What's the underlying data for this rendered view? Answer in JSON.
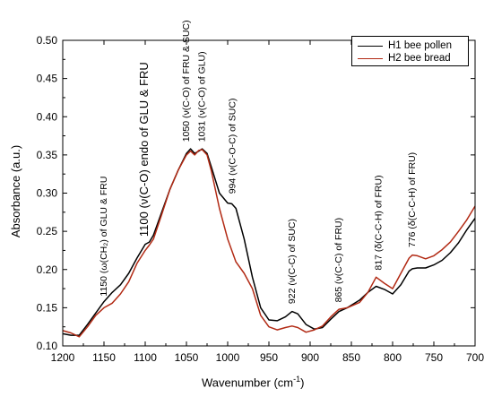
{
  "chart_data": {
    "type": "line",
    "xlabel": "Wavenumber (cm",
    "xlabel_sup": "-1",
    "xlabel_close": ")",
    "ylabel": "Absorbance (a.u.)",
    "xlim": [
      1200,
      700
    ],
    "ylim": [
      0.1,
      0.5
    ],
    "x_ticks": [
      1200,
      1150,
      1100,
      1050,
      1000,
      950,
      900,
      850,
      800,
      750,
      700
    ],
    "y_ticks": [
      "0.10",
      "0.15",
      "0.20",
      "0.25",
      "0.30",
      "0.35",
      "0.40",
      "0.45",
      "0.50"
    ],
    "legend_position": "top-right",
    "series": [
      {
        "name": "H1 bee pollen",
        "color": "#000000",
        "points": [
          [
            1200,
            0.116
          ],
          [
            1190,
            0.114
          ],
          [
            1180,
            0.114
          ],
          [
            1170,
            0.128
          ],
          [
            1160,
            0.143
          ],
          [
            1150,
            0.158
          ],
          [
            1140,
            0.17
          ],
          [
            1130,
            0.18
          ],
          [
            1120,
            0.195
          ],
          [
            1110,
            0.215
          ],
          [
            1100,
            0.233
          ],
          [
            1095,
            0.236
          ],
          [
            1090,
            0.245
          ],
          [
            1080,
            0.275
          ],
          [
            1070,
            0.305
          ],
          [
            1060,
            0.33
          ],
          [
            1050,
            0.352
          ],
          [
            1045,
            0.358
          ],
          [
            1040,
            0.352
          ],
          [
            1035,
            0.355
          ],
          [
            1031,
            0.358
          ],
          [
            1025,
            0.352
          ],
          [
            1020,
            0.335
          ],
          [
            1010,
            0.3
          ],
          [
            1000,
            0.287
          ],
          [
            995,
            0.286
          ],
          [
            990,
            0.28
          ],
          [
            980,
            0.24
          ],
          [
            970,
            0.19
          ],
          [
            960,
            0.15
          ],
          [
            950,
            0.134
          ],
          [
            940,
            0.133
          ],
          [
            930,
            0.138
          ],
          [
            922,
            0.145
          ],
          [
            915,
            0.142
          ],
          [
            905,
            0.128
          ],
          [
            895,
            0.122
          ],
          [
            885,
            0.124
          ],
          [
            875,
            0.135
          ],
          [
            865,
            0.145
          ],
          [
            855,
            0.15
          ],
          [
            840,
            0.16
          ],
          [
            830,
            0.17
          ],
          [
            820,
            0.178
          ],
          [
            810,
            0.174
          ],
          [
            800,
            0.168
          ],
          [
            790,
            0.18
          ],
          [
            780,
            0.198
          ],
          [
            776,
            0.201
          ],
          [
            770,
            0.202
          ],
          [
            760,
            0.202
          ],
          [
            750,
            0.206
          ],
          [
            740,
            0.212
          ],
          [
            730,
            0.222
          ],
          [
            720,
            0.235
          ],
          [
            710,
            0.252
          ],
          [
            700,
            0.267
          ]
        ]
      },
      {
        "name": "H2 bee bread",
        "color": "#b22a14",
        "points": [
          [
            1200,
            0.12
          ],
          [
            1190,
            0.117
          ],
          [
            1180,
            0.112
          ],
          [
            1170,
            0.125
          ],
          [
            1160,
            0.14
          ],
          [
            1150,
            0.15
          ],
          [
            1140,
            0.156
          ],
          [
            1130,
            0.168
          ],
          [
            1120,
            0.184
          ],
          [
            1110,
            0.208
          ],
          [
            1100,
            0.225
          ],
          [
            1095,
            0.232
          ],
          [
            1090,
            0.24
          ],
          [
            1080,
            0.272
          ],
          [
            1070,
            0.305
          ],
          [
            1060,
            0.33
          ],
          [
            1050,
            0.35
          ],
          [
            1045,
            0.355
          ],
          [
            1040,
            0.35
          ],
          [
            1035,
            0.356
          ],
          [
            1031,
            0.357
          ],
          [
            1025,
            0.35
          ],
          [
            1020,
            0.33
          ],
          [
            1010,
            0.28
          ],
          [
            1000,
            0.24
          ],
          [
            990,
            0.21
          ],
          [
            980,
            0.195
          ],
          [
            970,
            0.175
          ],
          [
            960,
            0.14
          ],
          [
            950,
            0.125
          ],
          [
            940,
            0.121
          ],
          [
            930,
            0.124
          ],
          [
            922,
            0.126
          ],
          [
            915,
            0.124
          ],
          [
            905,
            0.118
          ],
          [
            895,
            0.121
          ],
          [
            885,
            0.126
          ],
          [
            875,
            0.138
          ],
          [
            865,
            0.148
          ],
          [
            855,
            0.15
          ],
          [
            840,
            0.157
          ],
          [
            830,
            0.17
          ],
          [
            820,
            0.19
          ],
          [
            810,
            0.182
          ],
          [
            800,
            0.175
          ],
          [
            790,
            0.195
          ],
          [
            780,
            0.215
          ],
          [
            776,
            0.219
          ],
          [
            770,
            0.218
          ],
          [
            760,
            0.214
          ],
          [
            750,
            0.218
          ],
          [
            740,
            0.226
          ],
          [
            730,
            0.236
          ],
          [
            720,
            0.25
          ],
          [
            710,
            0.265
          ],
          [
            700,
            0.283
          ]
        ]
      }
    ],
    "annotations": [
      {
        "x": 1150,
        "y": 0.158,
        "text": "1150 (ω(CH₂) of GLU & FRU"
      },
      {
        "x": 1100,
        "y": 0.236,
        "text": "1100 (ν(C-O) endo of GLU & FRU"
      },
      {
        "x": 1050,
        "y": 0.36,
        "text": "1050 (ν(C-O) of FRU & SUC)"
      },
      {
        "x": 1031,
        "y": 0.36,
        "text": "1031 (ν(C-O) of GLU)"
      },
      {
        "x": 994,
        "y": 0.292,
        "text": "994 (ν(C-O-C) of SUC)"
      },
      {
        "x": 922,
        "y": 0.148,
        "text": "922 (ν(C-C) of SUC)"
      },
      {
        "x": 865,
        "y": 0.15,
        "text": "865 (ν(C-C) of FRU)"
      },
      {
        "x": 817,
        "y": 0.192,
        "text": "817 (δ(C-C-H) of FRU)"
      },
      {
        "x": 776,
        "y": 0.222,
        "text": "776 (δ(C-C-H) of FRU)"
      }
    ]
  }
}
